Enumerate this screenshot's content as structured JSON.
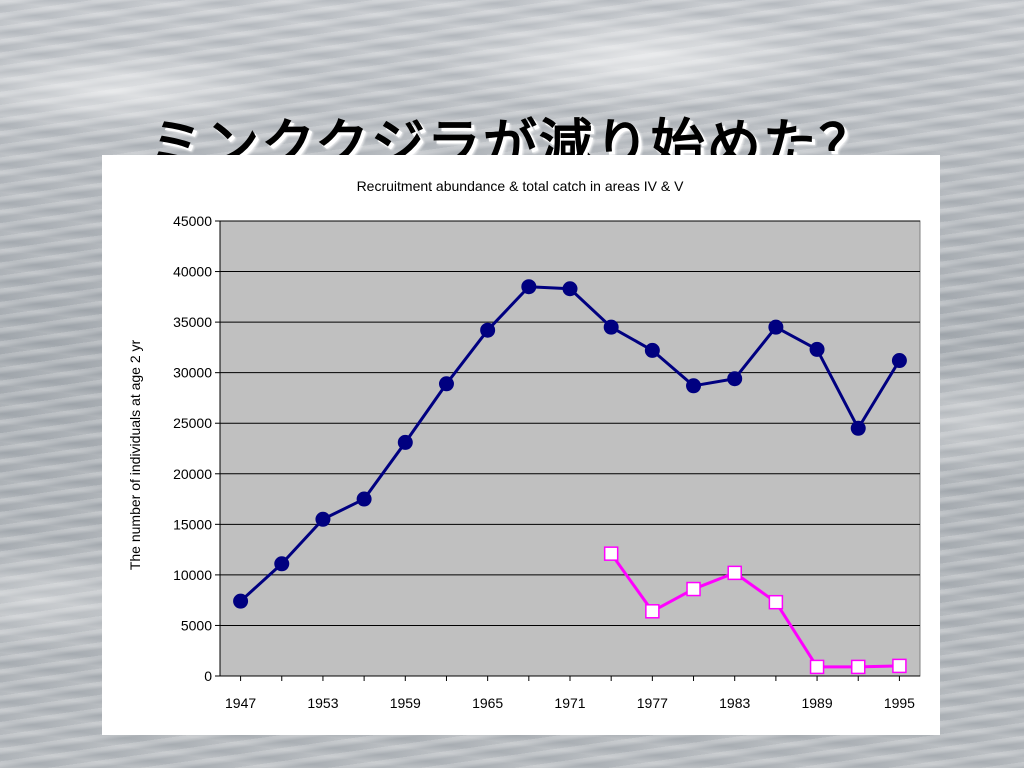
{
  "slide": {
    "title": "ミンククジラが減り始めた？"
  },
  "colors": {
    "plot_background": "#c0c0c0",
    "series1": "#000080",
    "series2": "#ff00ff"
  },
  "chart_data": {
    "type": "line",
    "title": "Recruitment abundance & total catch in areas IV & V",
    "xlabel": "",
    "ylabel": "The number of individuals at age 2 yr",
    "ylim": [
      0,
      45000
    ],
    "yticks": [
      0,
      5000,
      10000,
      15000,
      20000,
      25000,
      30000,
      35000,
      40000,
      45000
    ],
    "xlim": [
      1945.5,
      1996.5
    ],
    "xticks": [
      1947,
      1953,
      1959,
      1965,
      1971,
      1977,
      1983,
      1989,
      1995
    ],
    "grid": true,
    "series": [
      {
        "marker": "circle",
        "color": "#000080",
        "x": [
          1947,
          1950,
          1953,
          1956,
          1959,
          1962,
          1965,
          1968,
          1971,
          1974,
          1977,
          1980,
          1983,
          1986,
          1989,
          1992,
          1995
        ],
        "values": [
          7400,
          11100,
          15500,
          17500,
          23100,
          28900,
          34200,
          38500,
          38300,
          34500,
          32200,
          28700,
          29400,
          34500,
          32300,
          24500,
          31200
        ]
      },
      {
        "marker": "square",
        "color": "#ff00ff",
        "x": [
          1974,
          1977,
          1980,
          1983,
          1986,
          1989,
          1992,
          1995
        ],
        "values": [
          12100,
          6400,
          8600,
          10200,
          7300,
          900,
          900,
          1000
        ]
      }
    ]
  }
}
